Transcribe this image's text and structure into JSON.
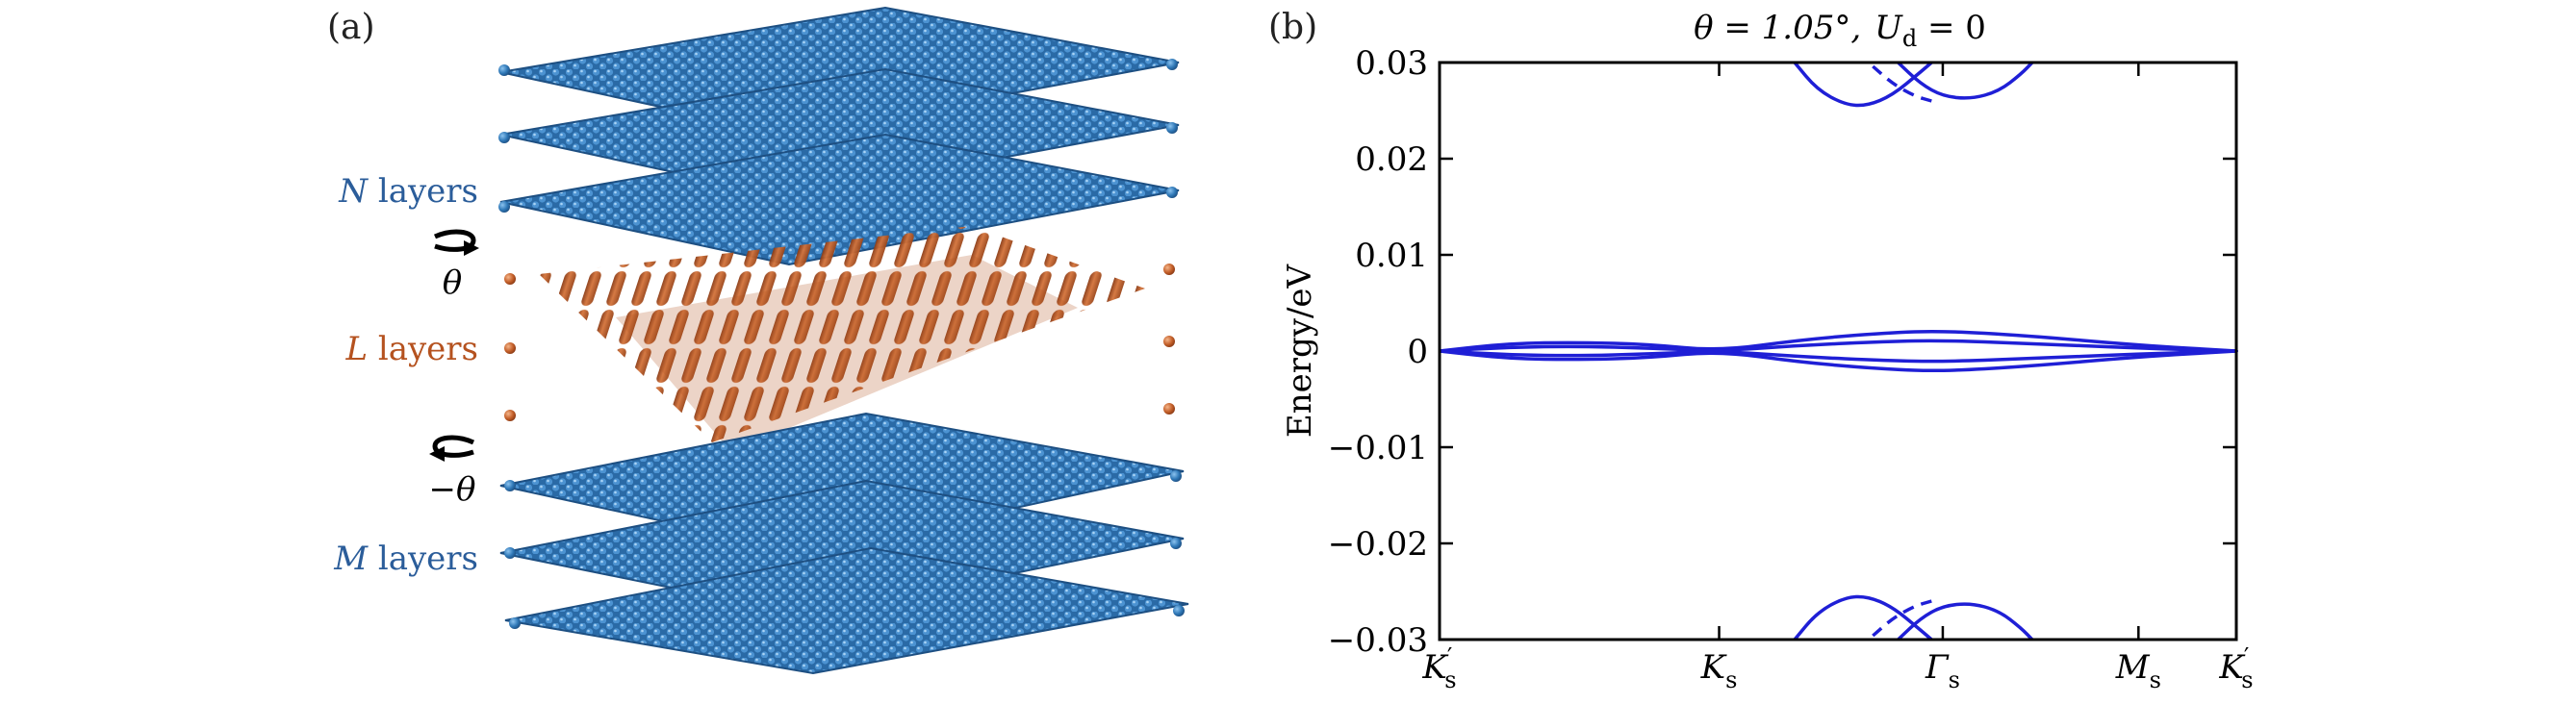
{
  "panel_a": {
    "label": "(a)",
    "layer_labels": [
      {
        "id": "n",
        "symbol": "N",
        "text": " layers",
        "color": "#2b5d9a"
      },
      {
        "id": "l",
        "symbol": "L",
        "text": " layers",
        "color": "#b5521f"
      },
      {
        "id": "m",
        "symbol": "M",
        "text": " layers",
        "color": "#2b5d9a"
      }
    ],
    "angle_labels": {
      "top": "θ",
      "bottom": "−θ"
    },
    "colors": {
      "graphene": "#2f78b7",
      "graphene_dark": "#1d4f82",
      "middle": "#c4602a",
      "middle_dark": "#8a3a14"
    }
  },
  "chart_data": {
    "label": "(b)",
    "type": "line",
    "title": "θ = 1.05°,  U_d = 0",
    "title_parts": {
      "theta": "θ = 1.05°,",
      "u": "U",
      "u_sub": "d",
      "eq": " = 0"
    },
    "ylabel": "Energy/eV",
    "xlabel": "",
    "ylim": [
      -0.03,
      0.03
    ],
    "yticks": [
      {
        "value": 0.03,
        "label": "0.03"
      },
      {
        "value": 0.02,
        "label": "0.02"
      },
      {
        "value": 0.01,
        "label": "0.01"
      },
      {
        "value": 0,
        "label": "0"
      },
      {
        "value": -0.01,
        "label": "−0.01"
      },
      {
        "value": -0.02,
        "label": "−0.02"
      },
      {
        "value": -0.03,
        "label": "−0.03"
      }
    ],
    "xticks": [
      {
        "pos": 0,
        "main": "K",
        "prime": true,
        "sub": "s"
      },
      {
        "pos": 1,
        "main": "K",
        "prime": false,
        "sub": "s"
      },
      {
        "pos": 1.8,
        "main": "Γ",
        "prime": false,
        "sub": "s"
      },
      {
        "pos": 2.5,
        "main": "M",
        "prime": false,
        "sub": "s"
      },
      {
        "pos": 2.85,
        "main": "K",
        "prime": true,
        "sub": "s"
      }
    ],
    "xlim": [
      0,
      2.85
    ],
    "line_color": "#1f1fd6",
    "series": [
      {
        "style": "solid",
        "points": [
          [
            0,
            0
          ],
          [
            0.25,
            0.0008
          ],
          [
            0.5,
            0.0009
          ],
          [
            0.75,
            0.0007
          ],
          [
            1,
            0
          ],
          [
            1.3,
            0.0012
          ],
          [
            1.6,
            0.0019
          ],
          [
            1.8,
            0.0021
          ],
          [
            2.1,
            0.0016
          ],
          [
            2.5,
            0.0006
          ],
          [
            2.85,
            0
          ]
        ]
      },
      {
        "style": "solid",
        "points": [
          [
            0,
            0
          ],
          [
            0.25,
            0.0004
          ],
          [
            0.5,
            0.0005
          ],
          [
            0.75,
            0.0003
          ],
          [
            1,
            0
          ],
          [
            1.3,
            0.0006
          ],
          [
            1.6,
            0.001
          ],
          [
            1.8,
            0.0011
          ],
          [
            2.1,
            0.0008
          ],
          [
            2.5,
            0.0003
          ],
          [
            2.85,
            0
          ]
        ]
      },
      {
        "style": "solid",
        "points": [
          [
            0,
            0
          ],
          [
            0.25,
            -0.0004
          ],
          [
            0.5,
            -0.0005
          ],
          [
            0.75,
            -0.0003
          ],
          [
            1,
            0
          ],
          [
            1.3,
            -0.0006
          ],
          [
            1.6,
            -0.001
          ],
          [
            1.8,
            -0.0011
          ],
          [
            2.1,
            -0.0008
          ],
          [
            2.5,
            -0.0003
          ],
          [
            2.85,
            0
          ]
        ]
      },
      {
        "style": "solid",
        "points": [
          [
            0,
            0
          ],
          [
            0.25,
            -0.0008
          ],
          [
            0.5,
            -0.0009
          ],
          [
            0.75,
            -0.0007
          ],
          [
            1,
            0
          ],
          [
            1.3,
            -0.0012
          ],
          [
            1.6,
            -0.0019
          ],
          [
            1.8,
            -0.0021
          ],
          [
            2.1,
            -0.0016
          ],
          [
            2.5,
            -0.0006
          ],
          [
            2.85,
            0
          ]
        ]
      },
      {
        "style": "solid",
        "points": [
          [
            1.27,
            0.03
          ],
          [
            1.35,
            0.0272
          ],
          [
            1.45,
            0.0256
          ],
          [
            1.53,
            0.0255
          ],
          [
            1.62,
            0.0266
          ],
          [
            1.72,
            0.029
          ],
          [
            1.76,
            0.03
          ]
        ]
      },
      {
        "style": "solid",
        "points": [
          [
            1.64,
            0.03
          ],
          [
            1.72,
            0.0278
          ],
          [
            1.8,
            0.0265
          ],
          [
            1.9,
            0.0262
          ],
          [
            2.0,
            0.027
          ],
          [
            2.08,
            0.0288
          ],
          [
            2.12,
            0.03
          ]
        ]
      },
      {
        "style": "dashed",
        "points": [
          [
            1.55,
            0.0296
          ],
          [
            1.62,
            0.0278
          ],
          [
            1.7,
            0.0265
          ],
          [
            1.76,
            0.026
          ]
        ]
      },
      {
        "style": "solid",
        "points": [
          [
            1.27,
            -0.03
          ],
          [
            1.35,
            -0.0272
          ],
          [
            1.45,
            -0.0256
          ],
          [
            1.53,
            -0.0255
          ],
          [
            1.62,
            -0.0266
          ],
          [
            1.72,
            -0.029
          ],
          [
            1.76,
            -0.03
          ]
        ]
      },
      {
        "style": "solid",
        "points": [
          [
            1.64,
            -0.03
          ],
          [
            1.72,
            -0.0278
          ],
          [
            1.8,
            -0.0265
          ],
          [
            1.9,
            -0.0262
          ],
          [
            2.0,
            -0.027
          ],
          [
            2.08,
            -0.0288
          ],
          [
            2.12,
            -0.03
          ]
        ]
      },
      {
        "style": "dashed",
        "points": [
          [
            1.55,
            -0.0296
          ],
          [
            1.62,
            -0.0278
          ],
          [
            1.7,
            -0.0265
          ],
          [
            1.76,
            -0.026
          ]
        ]
      }
    ]
  }
}
